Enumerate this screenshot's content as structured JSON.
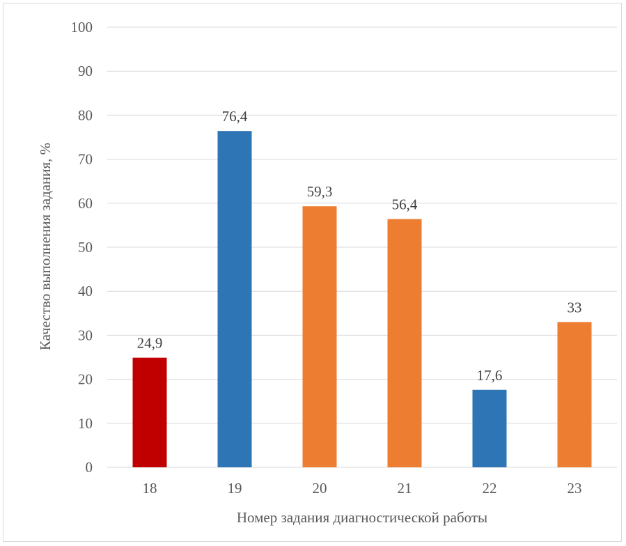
{
  "chart_data": {
    "type": "bar",
    "title": "",
    "xlabel": "Номер задания диагностической работы",
    "ylabel": "Качество выполнения задания, %",
    "ylim": [
      0,
      100
    ],
    "yticks": [
      0,
      10,
      20,
      30,
      40,
      50,
      60,
      70,
      80,
      90,
      100
    ],
    "grid": true,
    "legend": "none",
    "categories": [
      "18",
      "19",
      "20",
      "21",
      "22",
      "23"
    ],
    "values": [
      24.9,
      76.4,
      59.3,
      56.4,
      17.6,
      33
    ],
    "value_labels": [
      "24,9",
      "76,4",
      "59,3",
      "56,4",
      "17,6",
      "33"
    ],
    "bar_colors": [
      "#c00000",
      "#2e75b6",
      "#ed7d31",
      "#ed7d31",
      "#2e75b6",
      "#ed7d31"
    ],
    "grid_color": "#d9d9d9"
  }
}
